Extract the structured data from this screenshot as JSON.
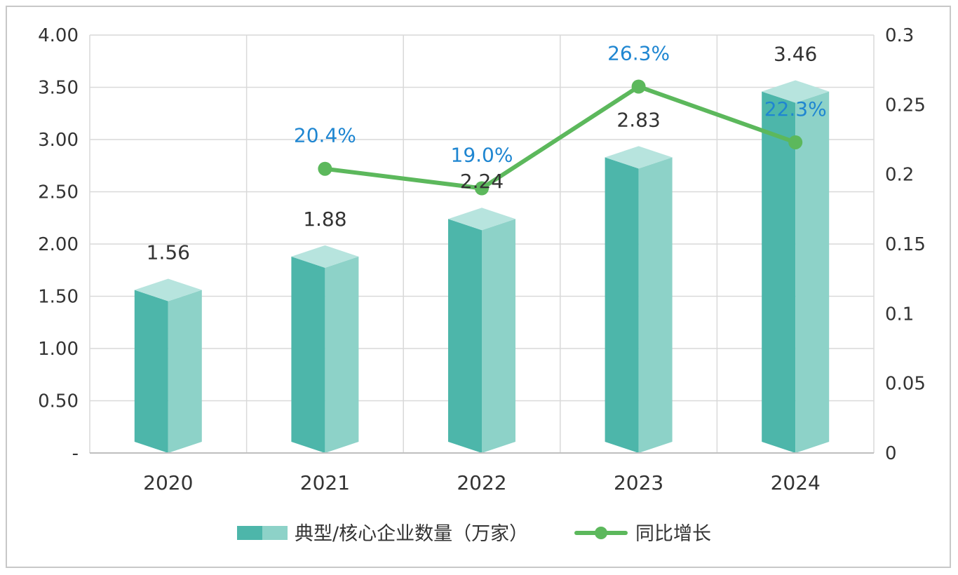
{
  "chart_data": {
    "type": "bar",
    "categories": [
      "2020",
      "2021",
      "2022",
      "2023",
      "2024"
    ],
    "series": [
      {
        "name": "典型/核心企业数量（万家）",
        "kind": "bar",
        "axis": "left",
        "values": [
          1.56,
          1.88,
          2.24,
          2.83,
          3.46
        ],
        "labels": [
          "1.56",
          "1.88",
          "2.24",
          "2.83",
          "3.46"
        ]
      },
      {
        "name": "同比增长",
        "kind": "line",
        "axis": "right",
        "values": [
          null,
          0.204,
          0.19,
          0.263,
          0.223
        ],
        "labels": [
          "",
          "20.4%",
          "19.0%",
          "26.3%",
          "22.3%"
        ]
      }
    ],
    "y_left": {
      "ylim": [
        0,
        4.0
      ],
      "ticks": [
        0,
        0.5,
        1.0,
        1.5,
        2.0,
        2.5,
        3.0,
        3.5,
        4.0
      ],
      "tick_labels": [
        "-",
        "0.50",
        "1.00",
        "1.50",
        "2.00",
        "2.50",
        "3.00",
        "3.50",
        "4.00"
      ]
    },
    "y_right": {
      "ylim": [
        0,
        0.3
      ],
      "ticks": [
        0,
        0.05,
        0.1,
        0.15,
        0.2,
        0.25,
        0.3
      ],
      "tick_labels": [
        "0",
        "0.05",
        "0.1",
        "0.15",
        "0.2",
        "0.25",
        "0.3"
      ]
    },
    "grid": true,
    "legend_position": "bottom",
    "colors": {
      "bar_dark": "#4db6aa",
      "bar_light": "#8dd2c8",
      "bar_top": "#b7e4de",
      "line": "#5cb85c",
      "pct_label": "#1f86d1",
      "grid": "#d9d9d9"
    }
  }
}
